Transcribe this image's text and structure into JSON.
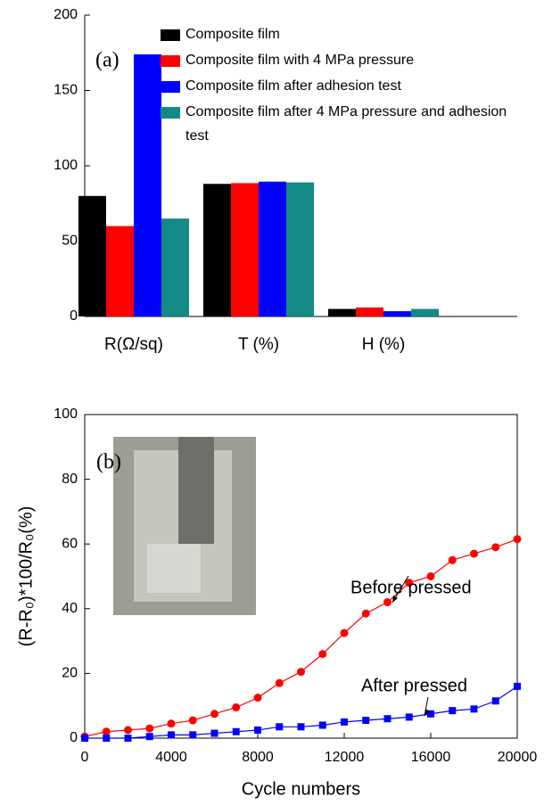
{
  "chart_data": [
    {
      "type": "bar",
      "annotation": "(a)",
      "categories": [
        "R(Ω/sq)",
        "T (%)",
        "H (%)"
      ],
      "series": [
        {
          "name": "Composite film",
          "color": "#000000",
          "values": [
            80,
            88,
            5
          ]
        },
        {
          "name": "Composite film with 4 MPa pressure",
          "color": "#ff0000",
          "values": [
            60,
            88.5,
            6
          ]
        },
        {
          "name": "Composite film after adhesion test",
          "color": "#0000ff",
          "values": [
            174,
            89.5,
            3.5
          ]
        },
        {
          "name": "Composite film after 4 MPa pressure and adhesion test",
          "color": "#138a85",
          "values": [
            65,
            89,
            5
          ]
        }
      ],
      "ylim": [
        0,
        200
      ],
      "yticks": [
        0,
        50,
        100,
        150,
        200
      ]
    },
    {
      "type": "line",
      "annotation": "(b)",
      "xlabel": "Cycle numbers",
      "ylabel": "(R-R₀)*100/R₀(%)",
      "x": [
        0,
        1000,
        2000,
        3000,
        4000,
        5000,
        6000,
        7000,
        8000,
        9000,
        10000,
        11000,
        12000,
        13000,
        14000,
        15000,
        16000,
        17000,
        18000,
        19000,
        20000
      ],
      "series": [
        {
          "name": "Before pressed",
          "color": "#ff0000",
          "marker": "circle",
          "values": [
            0.5,
            2,
            2.5,
            3,
            4.5,
            5.5,
            7.5,
            9.5,
            12.5,
            17,
            20.5,
            26,
            32.5,
            38.5,
            42,
            48,
            50,
            55,
            57,
            59,
            61.5
          ]
        },
        {
          "name": "After pressed",
          "color": "#0000ff",
          "marker": "square",
          "values": [
            0,
            0,
            0,
            0.5,
            1,
            1,
            1.5,
            2,
            2.5,
            3.5,
            3.5,
            4,
            5,
            5.5,
            6,
            6.5,
            7.5,
            8.5,
            9,
            11.5,
            16
          ]
        }
      ],
      "xlim": [
        0,
        20000
      ],
      "xticks": [
        0,
        4000,
        8000,
        12000,
        16000,
        20000
      ],
      "ylim": [
        0,
        100
      ],
      "yticks": [
        0,
        20,
        40,
        60,
        80,
        100
      ]
    }
  ]
}
